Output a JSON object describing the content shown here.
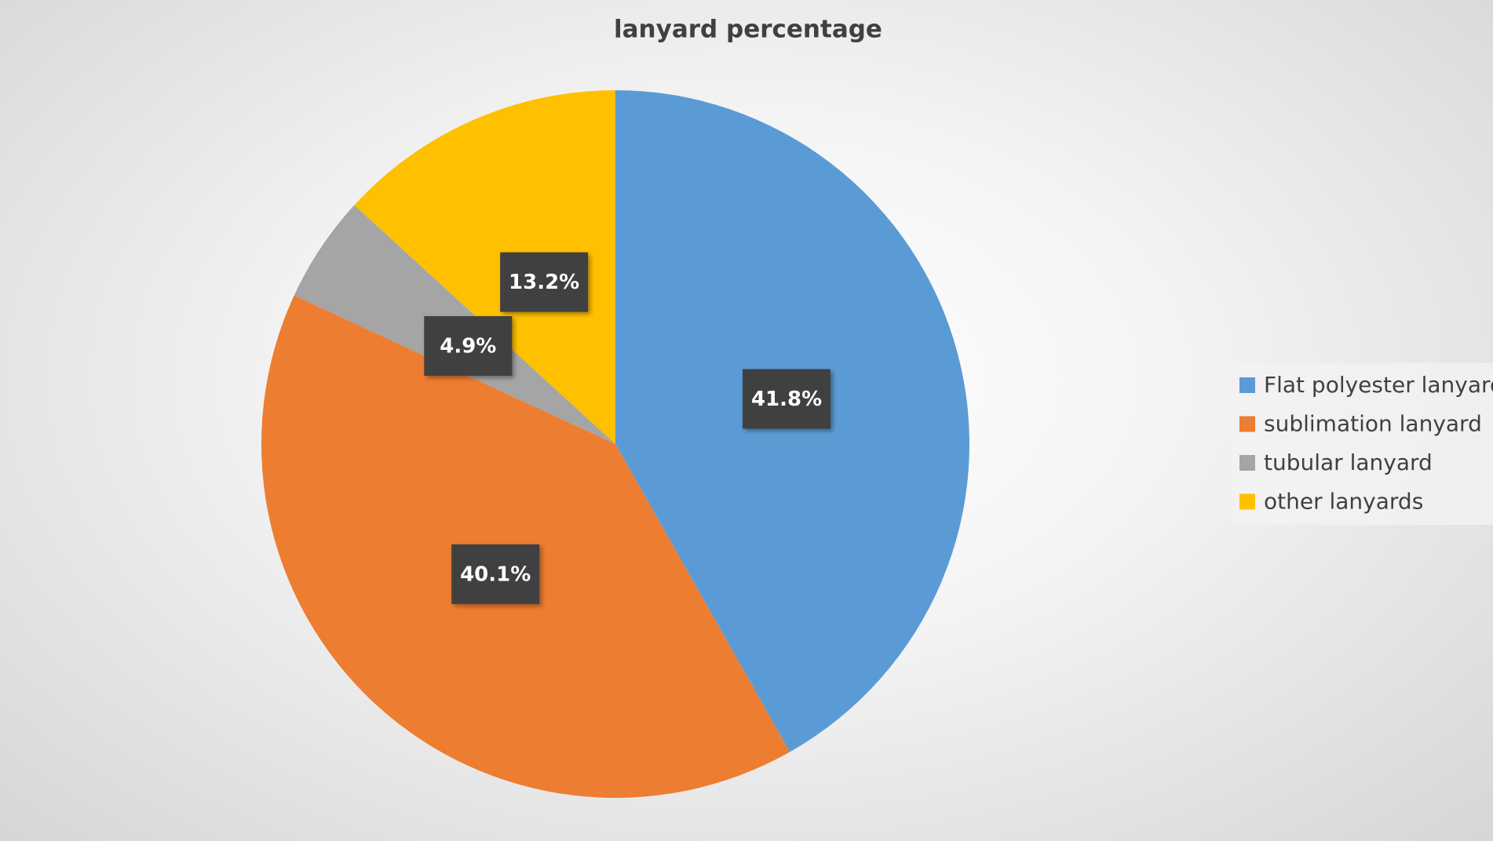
{
  "chart_data": {
    "type": "pie",
    "title": "lanyard percentage",
    "categories": [
      "Flat polyester lanyard",
      "sublimation lanyard",
      "tubular lanyard",
      "other lanyards"
    ],
    "values": [
      41.8,
      40.1,
      4.9,
      13.2
    ],
    "value_labels": [
      "41.8%",
      "40.1%",
      "4.9%",
      "13.2%"
    ],
    "colors": [
      "#5b9bd5",
      "#ed7d31",
      "#a5a5a5",
      "#ffc000"
    ],
    "legend": "right"
  }
}
